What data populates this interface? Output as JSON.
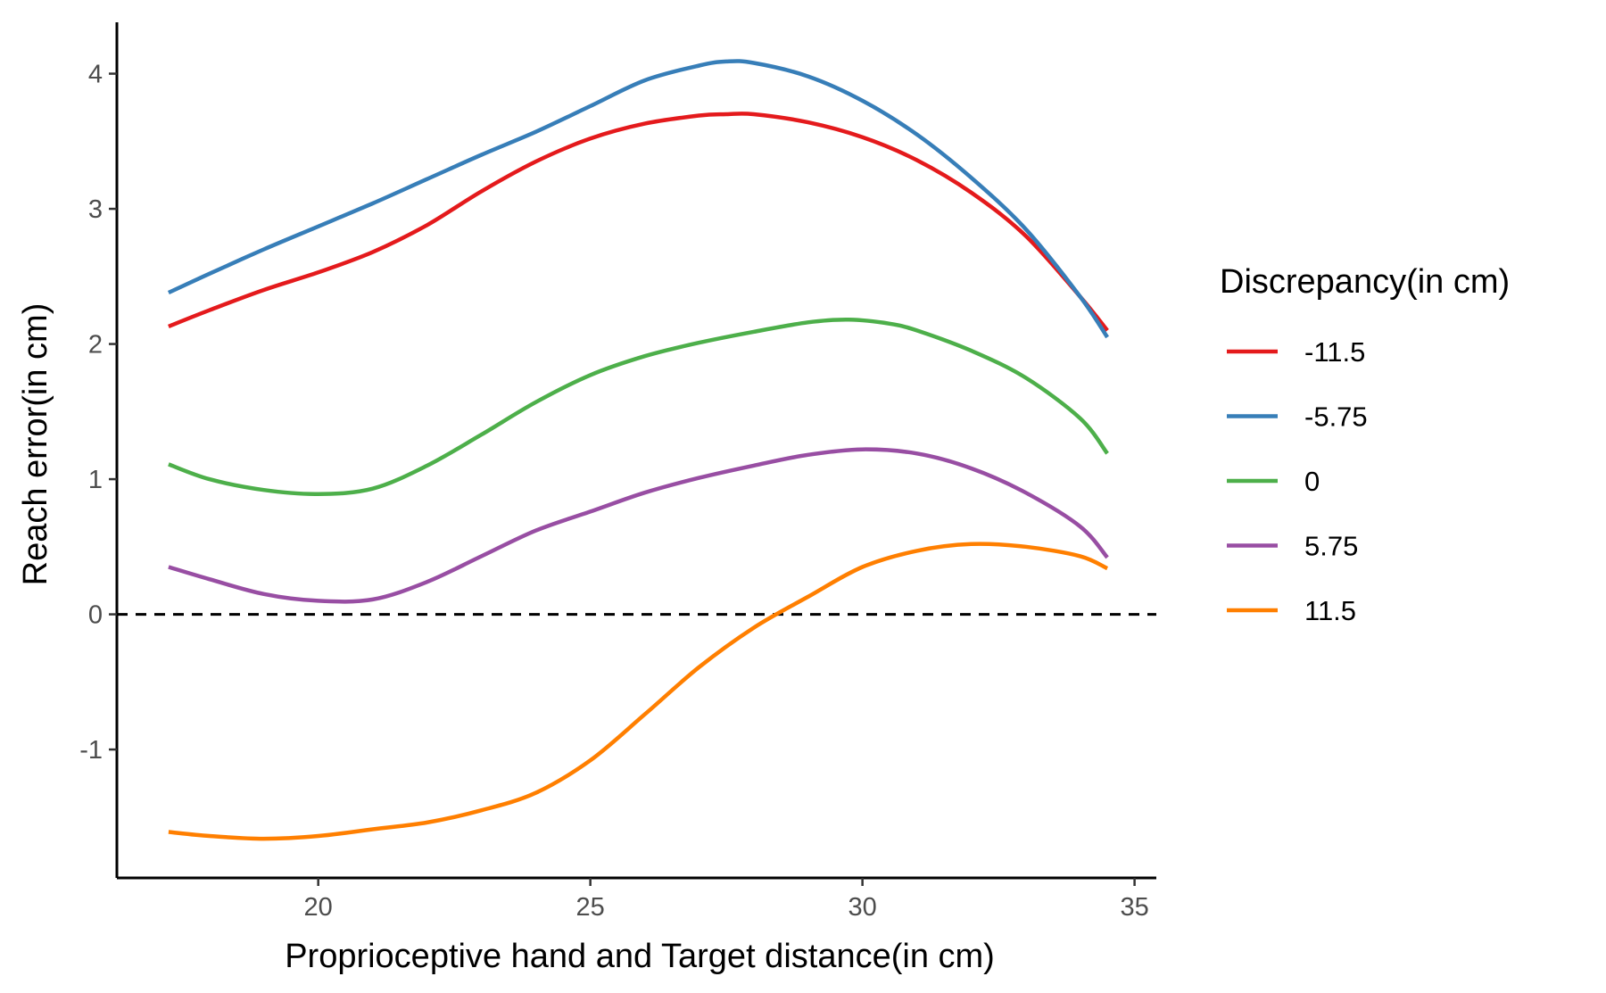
{
  "chart_data": {
    "type": "line",
    "title": "",
    "xlabel": "Proprioceptive hand and Target distance(in cm)",
    "ylabel": "Reach error(in cm)",
    "xlim": [
      16.3,
      35.4
    ],
    "ylim": [
      -1.95,
      4.38
    ],
    "x_ticks": [
      20,
      25,
      30,
      35
    ],
    "x_tick_labels": [
      "20",
      "25",
      "30",
      "35"
    ],
    "y_ticks": [
      -1,
      0,
      1,
      2,
      3,
      4
    ],
    "y_tick_labels": [
      "-1",
      "0",
      "1",
      "2",
      "3",
      "4"
    ],
    "grid": false,
    "reference_line": {
      "y": 0,
      "style": "dashed",
      "color": "#000000"
    },
    "legend": {
      "title": "Discrepancy(in cm)",
      "position": "right"
    },
    "series": [
      {
        "name": "-11.5",
        "color": "#E41A1C",
        "points": [
          [
            17.25,
            2.13
          ],
          [
            18,
            2.25
          ],
          [
            19,
            2.4
          ],
          [
            20,
            2.53
          ],
          [
            21,
            2.68
          ],
          [
            22,
            2.88
          ],
          [
            23,
            3.13
          ],
          [
            24,
            3.35
          ],
          [
            25,
            3.52
          ],
          [
            26,
            3.63
          ],
          [
            27,
            3.69
          ],
          [
            27.5,
            3.7
          ],
          [
            28,
            3.7
          ],
          [
            29,
            3.64
          ],
          [
            30,
            3.53
          ],
          [
            31,
            3.36
          ],
          [
            32,
            3.12
          ],
          [
            33,
            2.8
          ],
          [
            34,
            2.35
          ],
          [
            34.5,
            2.1
          ]
        ]
      },
      {
        "name": "-5.75",
        "color": "#377EB8",
        "points": [
          [
            17.25,
            2.38
          ],
          [
            18,
            2.52
          ],
          [
            19,
            2.7
          ],
          [
            20,
            2.87
          ],
          [
            21,
            3.04
          ],
          [
            22,
            3.22
          ],
          [
            23,
            3.4
          ],
          [
            24,
            3.57
          ],
          [
            25,
            3.76
          ],
          [
            26,
            3.95
          ],
          [
            27,
            4.06
          ],
          [
            27.5,
            4.09
          ],
          [
            28,
            4.08
          ],
          [
            29,
            3.98
          ],
          [
            30,
            3.8
          ],
          [
            31,
            3.55
          ],
          [
            32,
            3.23
          ],
          [
            33,
            2.85
          ],
          [
            34,
            2.35
          ],
          [
            34.5,
            2.05
          ]
        ]
      },
      {
        "name": "0",
        "color": "#4DAF4A",
        "points": [
          [
            17.25,
            1.11
          ],
          [
            18,
            1.0
          ],
          [
            19,
            0.92
          ],
          [
            20,
            0.89
          ],
          [
            21,
            0.93
          ],
          [
            22,
            1.1
          ],
          [
            23,
            1.33
          ],
          [
            24,
            1.57
          ],
          [
            25,
            1.77
          ],
          [
            26,
            1.91
          ],
          [
            27,
            2.01
          ],
          [
            28,
            2.09
          ],
          [
            29,
            2.16
          ],
          [
            29.75,
            2.18
          ],
          [
            30.5,
            2.15
          ],
          [
            31,
            2.1
          ],
          [
            32,
            1.95
          ],
          [
            33,
            1.75
          ],
          [
            34,
            1.45
          ],
          [
            34.5,
            1.19
          ]
        ]
      },
      {
        "name": "5.75",
        "color": "#984EA3",
        "points": [
          [
            17.25,
            0.35
          ],
          [
            18,
            0.26
          ],
          [
            19,
            0.15
          ],
          [
            20,
            0.1
          ],
          [
            21,
            0.11
          ],
          [
            22,
            0.24
          ],
          [
            23,
            0.43
          ],
          [
            24,
            0.62
          ],
          [
            25,
            0.76
          ],
          [
            26,
            0.9
          ],
          [
            27,
            1.01
          ],
          [
            28,
            1.1
          ],
          [
            29,
            1.18
          ],
          [
            30,
            1.22
          ],
          [
            31,
            1.19
          ],
          [
            32,
            1.08
          ],
          [
            33,
            0.9
          ],
          [
            34,
            0.65
          ],
          [
            34.5,
            0.42
          ]
        ]
      },
      {
        "name": "11.5",
        "color": "#FF7F00",
        "points": [
          [
            17.25,
            -1.61
          ],
          [
            18,
            -1.64
          ],
          [
            19,
            -1.66
          ],
          [
            20,
            -1.64
          ],
          [
            21,
            -1.59
          ],
          [
            22,
            -1.54
          ],
          [
            23,
            -1.45
          ],
          [
            24,
            -1.32
          ],
          [
            25,
            -1.08
          ],
          [
            26,
            -0.74
          ],
          [
            27,
            -0.39
          ],
          [
            28,
            -0.1
          ],
          [
            29,
            0.13
          ],
          [
            30,
            0.35
          ],
          [
            31,
            0.47
          ],
          [
            32,
            0.52
          ],
          [
            33,
            0.5
          ],
          [
            34,
            0.43
          ],
          [
            34.5,
            0.34
          ]
        ]
      }
    ]
  }
}
